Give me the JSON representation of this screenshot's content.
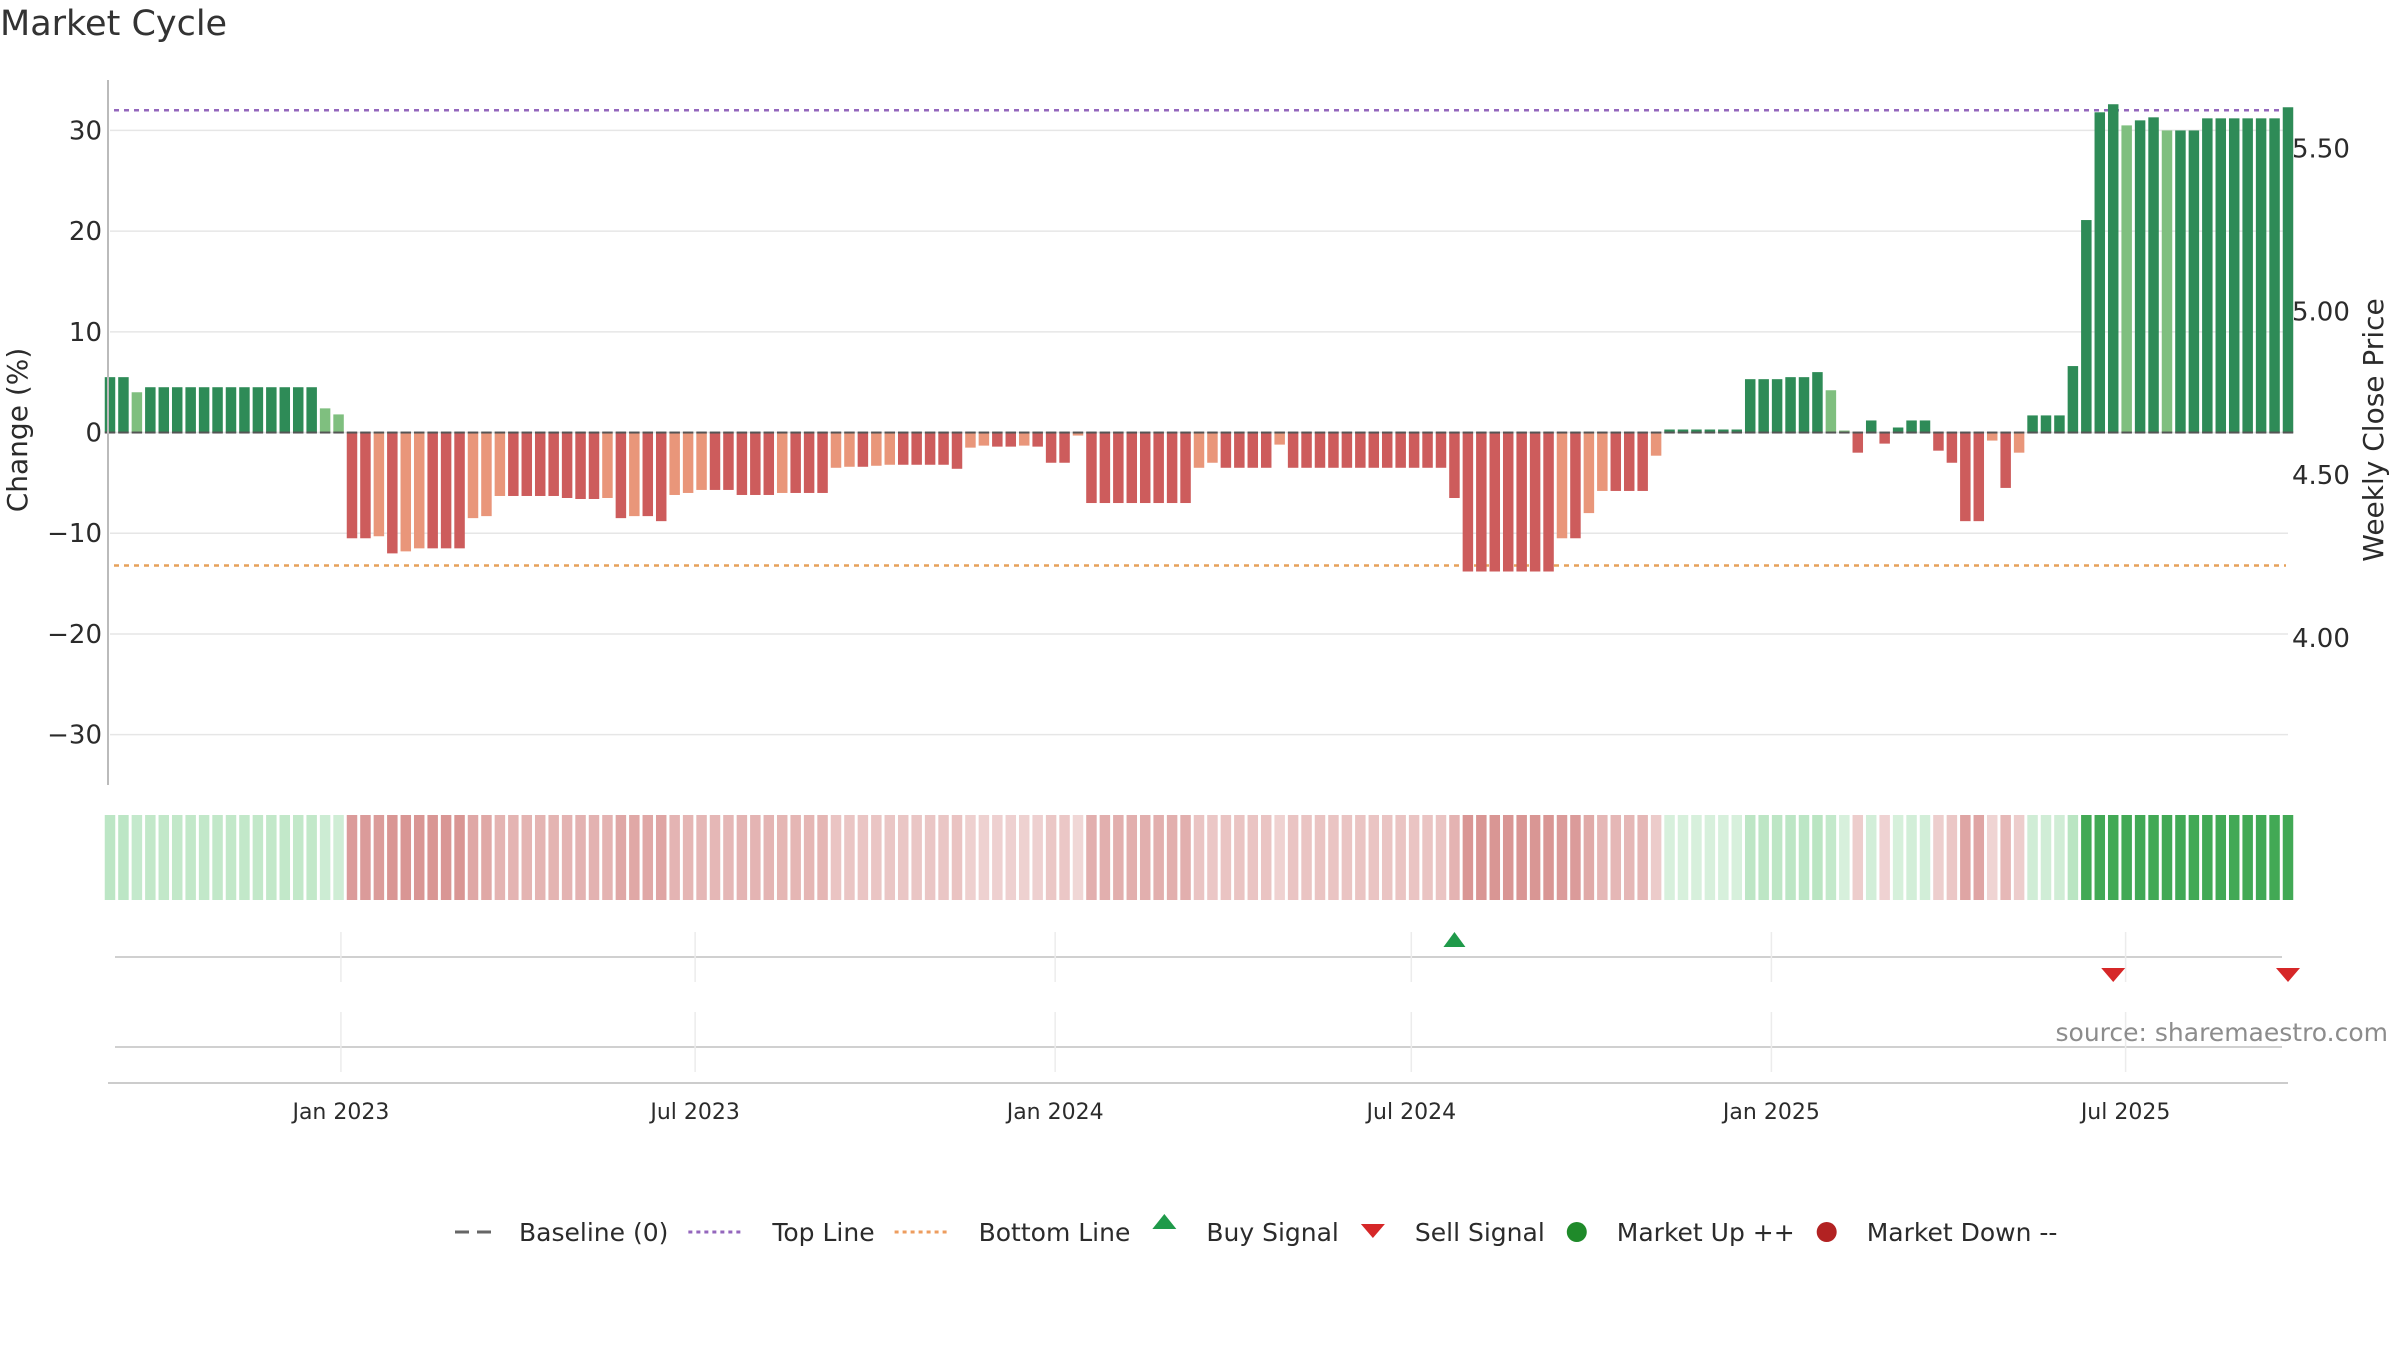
{
  "title": "Market Cycle",
  "source": "source: sharemaestro.com",
  "chart_data": {
    "type": "bar",
    "ylabel_left": "Change (%)",
    "ylabel_right": "Weekly Close Price",
    "ylim_left": [
      -35,
      36
    ],
    "yticks_left": [
      30,
      20,
      10,
      0,
      -10,
      -20,
      -30
    ],
    "yticks_left_labels": [
      "30",
      "20",
      "10",
      "0",
      "−10",
      "−20",
      "−30"
    ],
    "ylim_right": [
      3.55,
      5.74
    ],
    "yticks_right": [
      5.5,
      5.0,
      4.5,
      4.0
    ],
    "yticks_right_labels": [
      "5.50",
      "5.00",
      "4.50",
      "4.00"
    ],
    "x_start": "2022-09-05",
    "x_end": "2025-09-22",
    "x_ticks": [
      {
        "date": "2023-01-01",
        "label": "Jan 2023"
      },
      {
        "date": "2023-07-01",
        "label": "Jul 2023"
      },
      {
        "date": "2024-01-01",
        "label": "Jan 2024"
      },
      {
        "date": "2024-07-01",
        "label": "Jul 2024"
      },
      {
        "date": "2025-01-01",
        "label": "Jan 2025"
      },
      {
        "date": "2025-07-01",
        "label": "Jul 2025"
      }
    ],
    "top_line": 32,
    "bottom_line": -13.2,
    "grid": true,
    "change_values": [
      5.5,
      5.5,
      4.0,
      4.5,
      4.5,
      4.5,
      4.5,
      4.5,
      4.5,
      4.5,
      4.5,
      4.5,
      4.5,
      4.5,
      4.5,
      4.5,
      2.4,
      1.8,
      -10.5,
      -10.5,
      -10.3,
      -12.0,
      -11.8,
      -11.5,
      -11.5,
      -11.5,
      -11.5,
      -8.5,
      -8.3,
      -6.3,
      -6.3,
      -6.3,
      -6.3,
      -6.3,
      -6.5,
      -6.6,
      -6.6,
      -6.5,
      -8.5,
      -8.3,
      -8.3,
      -8.8,
      -6.2,
      -6.0,
      -5.7,
      -5.7,
      -5.7,
      -6.2,
      -6.2,
      -6.2,
      -6.0,
      -6.0,
      -6.0,
      -6.0,
      -3.5,
      -3.4,
      -3.4,
      -3.3,
      -3.2,
      -3.2,
      -3.2,
      -3.2,
      -3.2,
      -3.6,
      -1.5,
      -1.3,
      -1.4,
      -1.4,
      -1.3,
      -1.4,
      -3.0,
      -3.0,
      -0.3,
      -7.0,
      -7.0,
      -7.0,
      -7.0,
      -7.0,
      -7.0,
      -7.0,
      -7.0,
      -3.5,
      -3.0,
      -3.5,
      -3.5,
      -3.5,
      -3.5,
      -1.2,
      -3.5,
      -3.5,
      -3.5,
      -3.5,
      -3.5,
      -3.5,
      -3.5,
      -3.5,
      -3.5,
      -3.5,
      -3.5,
      -3.5,
      -6.5,
      -13.8,
      -13.8,
      -13.8,
      -13.8,
      -13.8,
      -13.8,
      -13.8,
      -10.5,
      -10.5,
      -8.0,
      -5.8,
      -5.8,
      -5.8,
      -5.8,
      -2.3,
      0.3,
      0.3,
      0.3,
      0.3,
      0.3,
      0.3,
      5.3,
      5.3,
      5.3,
      5.5,
      5.5,
      6.0,
      4.2,
      0.2,
      -2.0,
      1.2,
      -1.1,
      0.5,
      1.2,
      1.2,
      -1.8,
      -3.0,
      -8.8,
      -8.8,
      -0.8,
      -5.5,
      -2.0,
      1.7,
      1.7,
      1.7,
      6.6,
      21.1,
      31.8,
      32.6,
      30.5,
      31.0,
      31.3,
      30.0,
      30.0,
      30.0,
      31.2,
      31.2,
      31.2,
      31.2,
      31.2,
      31.2,
      32.3
    ],
    "buy_signals": [
      "2024-07-22"
    ],
    "sell_signals": [
      "2025-06-23",
      "2025-09-22"
    ],
    "legend_position": "bottom",
    "legend": [
      {
        "label": "Baseline (0)",
        "marker": "dash",
        "color": "#666666"
      },
      {
        "label": "Top Line",
        "marker": "dotted",
        "color": "#9467bd"
      },
      {
        "label": "Bottom Line",
        "marker": "dotted",
        "color": "#ed9d5f"
      },
      {
        "label": "Buy Signal",
        "marker": "triangle-up",
        "color": "#1f9a4a"
      },
      {
        "label": "Sell Signal",
        "marker": "triangle-down",
        "color": "#d62728"
      },
      {
        "label": "Market Up ++",
        "marker": "circle",
        "color": "#1f8a2a"
      },
      {
        "label": "Market Down --",
        "marker": "circle",
        "color": "#b22222"
      }
    ]
  },
  "colors": {
    "strong_up": "#2e8b57",
    "mild_up": "#7fbf7f",
    "strong_down": "#cd5c5c",
    "mild_down": "#e9967a",
    "top_line": "#9467bd",
    "bottom_line": "#e6a15a",
    "grid": "#e6e6e6",
    "baseline": "#555555"
  }
}
